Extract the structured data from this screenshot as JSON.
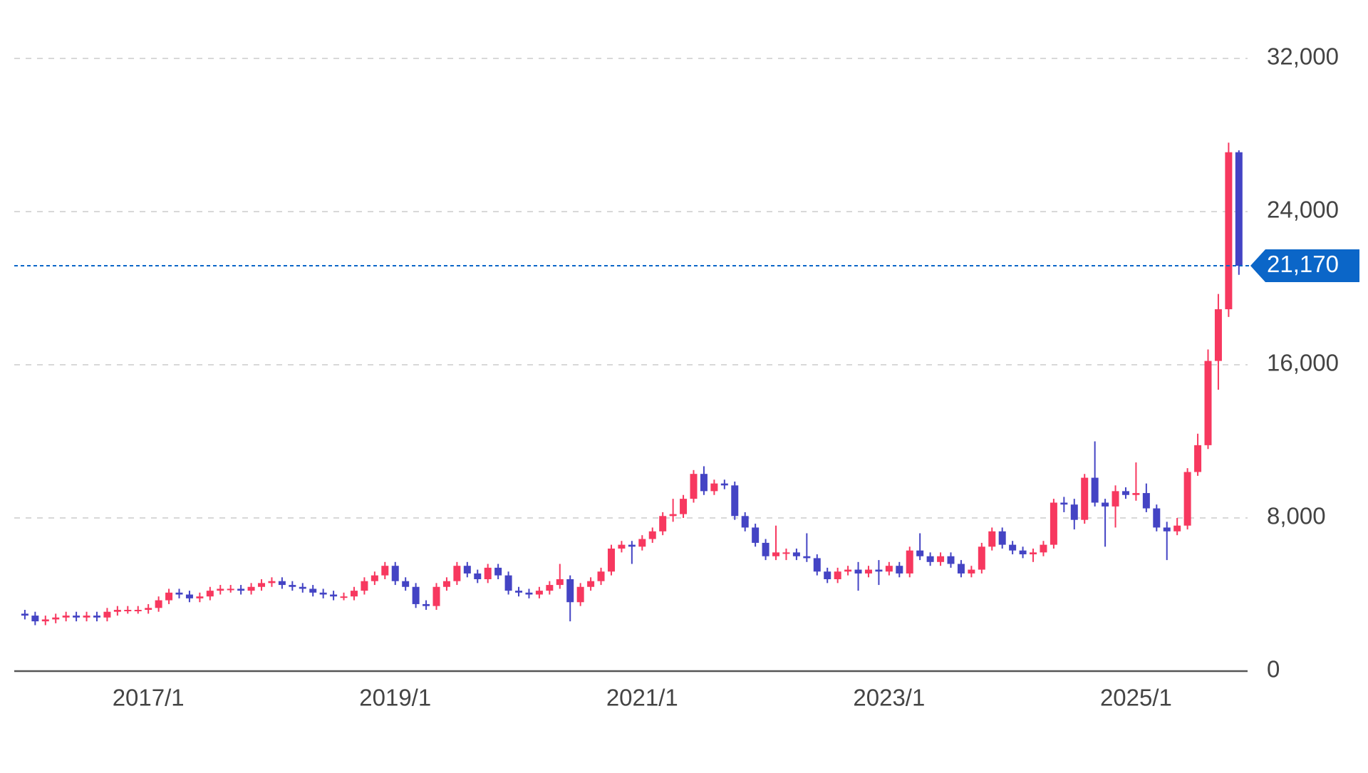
{
  "chart_data": {
    "type": "candlestick",
    "categories": [
      null,
      null,
      null,
      null,
      null,
      null,
      null,
      null,
      null,
      null,
      null,
      null,
      "2017/1",
      null,
      null,
      null,
      null,
      null,
      null,
      null,
      null,
      null,
      null,
      null,
      null,
      null,
      null,
      null,
      null,
      null,
      null,
      null,
      null,
      null,
      null,
      null,
      "2019/1",
      null,
      null,
      null,
      null,
      null,
      null,
      null,
      null,
      null,
      null,
      null,
      null,
      null,
      null,
      null,
      null,
      null,
      null,
      null,
      null,
      null,
      null,
      null,
      "2021/1",
      null,
      null,
      null,
      null,
      null,
      null,
      null,
      null,
      null,
      null,
      null,
      null,
      null,
      null,
      null,
      null,
      null,
      null,
      null,
      null,
      null,
      null,
      null,
      "2023/1",
      null,
      null,
      null,
      null,
      null,
      null,
      null,
      null,
      null,
      null,
      null,
      null,
      null,
      null,
      null,
      null,
      null,
      null,
      null,
      null,
      null,
      null,
      null,
      "2025/1",
      null,
      null,
      null,
      null,
      null,
      null,
      null,
      null,
      null,
      null
    ],
    "open": [
      3000,
      2900,
      2600,
      2700,
      2800,
      2900,
      2800,
      2900,
      2800,
      3100,
      3200,
      3200,
      3200,
      3300,
      3700,
      4100,
      4000,
      3800,
      3900,
      4200,
      4300,
      4300,
      4200,
      4400,
      4600,
      4700,
      4500,
      4400,
      4300,
      4100,
      4000,
      3900,
      3900,
      4200,
      4700,
      5000,
      5500,
      4700,
      4400,
      3500,
      3400,
      4400,
      4700,
      5500,
      5100,
      4800,
      5400,
      5000,
      4200,
      4100,
      4000,
      4200,
      4500,
      4800,
      3600,
      4400,
      4700,
      5200,
      6400,
      6600,
      6500,
      6900,
      7300,
      8100,
      8200,
      9000,
      10300,
      9400,
      9800,
      9700,
      8100,
      7500,
      6700,
      6000,
      6200,
      6200,
      6000,
      5900,
      5200,
      4800,
      5200,
      5300,
      5100,
      5300,
      5200,
      5500,
      5100,
      6300,
      6000,
      5700,
      6000,
      5600,
      5100,
      5300,
      6500,
      7300,
      6600,
      6300,
      6100,
      6200,
      6600,
      8800,
      8700,
      7900,
      10100,
      8800,
      8600,
      9400,
      9200,
      9300,
      8500,
      7500,
      7300,
      7600,
      10400,
      11800,
      16200,
      18900,
      27100
    ],
    "high": [
      3200,
      3100,
      2900,
      3000,
      3100,
      3100,
      3100,
      3100,
      3300,
      3400,
      3400,
      3400,
      3500,
      3900,
      4300,
      4300,
      4200,
      4100,
      4400,
      4500,
      4500,
      4500,
      4600,
      4800,
      4900,
      4900,
      4700,
      4600,
      4500,
      4300,
      4200,
      4100,
      4400,
      4900,
      5200,
      5700,
      5700,
      4900,
      4600,
      3700,
      4600,
      4900,
      5700,
      5700,
      5300,
      5600,
      5600,
      5200,
      4400,
      4300,
      4400,
      4700,
      5600,
      5000,
      4600,
      4900,
      5400,
      6600,
      6800,
      6800,
      7100,
      7500,
      8300,
      9000,
      9200,
      10500,
      10700,
      10000,
      10000,
      9900,
      8300,
      7700,
      6900,
      7600,
      6400,
      6400,
      7200,
      6100,
      5400,
      5400,
      5500,
      5700,
      5500,
      5800,
      5700,
      5700,
      6500,
      7200,
      6200,
      6200,
      6200,
      5800,
      5500,
      6700,
      7500,
      7500,
      6800,
      6500,
      6400,
      6800,
      9000,
      9100,
      9000,
      10300,
      12000,
      9000,
      9700,
      9600,
      10900,
      9800,
      8700,
      7800,
      8000,
      10600,
      12400,
      16800,
      19700,
      27600,
      27200
    ],
    "low": [
      2700,
      2400,
      2400,
      2500,
      2600,
      2600,
      2600,
      2600,
      2600,
      2900,
      3000,
      3000,
      3000,
      3100,
      3500,
      3800,
      3600,
      3600,
      3700,
      4000,
      4100,
      4000,
      4000,
      4200,
      4400,
      4300,
      4200,
      4100,
      3900,
      3800,
      3700,
      3700,
      3700,
      4000,
      4500,
      4800,
      4500,
      4200,
      3300,
      3200,
      3200,
      4200,
      4500,
      4900,
      4600,
      4600,
      4800,
      4000,
      3900,
      3800,
      3800,
      4000,
      4300,
      2600,
      3400,
      4200,
      4500,
      5000,
      6200,
      5600,
      6300,
      6700,
      7100,
      7800,
      8000,
      8800,
      9200,
      9200,
      9500,
      7900,
      7300,
      6500,
      5800,
      5800,
      5800,
      5800,
      5700,
      5000,
      4600,
      4600,
      5000,
      4200,
      4900,
      4500,
      5000,
      4900,
      4900,
      5800,
      5500,
      5500,
      5400,
      4900,
      4900,
      5100,
      6300,
      6400,
      6100,
      5900,
      5700,
      6000,
      6400,
      8300,
      7400,
      7700,
      8600,
      6500,
      7500,
      9000,
      8900,
      8300,
      7300,
      5800,
      7100,
      7400,
      10200,
      11600,
      14700,
      18500,
      20700
    ],
    "close": [
      2900,
      2600,
      2700,
      2800,
      2900,
      2800,
      2900,
      2800,
      3100,
      3200,
      3200,
      3200,
      3300,
      3700,
      4100,
      4000,
      3800,
      3900,
      4200,
      4300,
      4300,
      4200,
      4400,
      4600,
      4700,
      4500,
      4400,
      4300,
      4100,
      4000,
      3900,
      3900,
      4200,
      4700,
      5000,
      5500,
      4700,
      4400,
      3500,
      3400,
      4400,
      4700,
      5500,
      5100,
      4800,
      5400,
      5000,
      4200,
      4100,
      4000,
      4200,
      4500,
      4800,
      3600,
      4400,
      4700,
      5200,
      6400,
      6600,
      6500,
      6900,
      7300,
      8100,
      8200,
      9000,
      10300,
      9400,
      9800,
      9700,
      8100,
      7500,
      6700,
      6000,
      6200,
      6200,
      6000,
      5900,
      5200,
      4800,
      5200,
      5300,
      5100,
      5300,
      5200,
      5500,
      5100,
      6300,
      6000,
      5700,
      6000,
      5600,
      5100,
      5300,
      6500,
      7300,
      6600,
      6300,
      6100,
      6200,
      6600,
      8800,
      8700,
      7900,
      10100,
      8800,
      8600,
      9400,
      9200,
      9300,
      8500,
      7500,
      7300,
      7600,
      10400,
      11800,
      16200,
      18900,
      27100,
      21170
    ],
    "up_color": "#f7385f",
    "down_color": "#4444c4",
    "ylim": [
      0,
      32000
    ],
    "yticks": [
      0,
      {
        "value": 8000,
        "label": "8,000"
      },
      {
        "value": 16000,
        "label": "16,000"
      },
      {
        "value": 24000,
        "label": "24,000"
      },
      {
        "value": 32000,
        "label": "32,000"
      }
    ],
    "grid": true,
    "current_price": {
      "value": 21170,
      "label": "21,170",
      "color": "#0b66c8"
    }
  }
}
